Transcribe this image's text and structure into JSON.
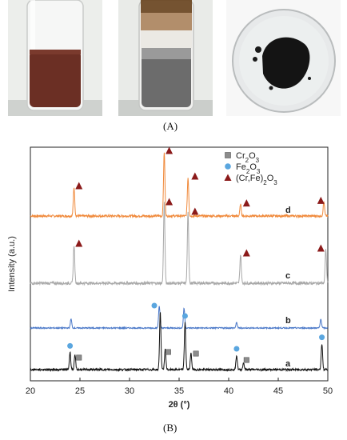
{
  "panel_a_label": "(A)",
  "panel_b_label": "(B)",
  "photos": [
    {
      "name": "red-brown powder in test tube",
      "powder_color": "#6b2f24"
    },
    {
      "name": "gray-brown powder in test tube",
      "powder_color": "#6c6c6c",
      "top_color": "#8a5b2c"
    },
    {
      "name": "black powder on watch glass",
      "powder_color": "#141414"
    }
  ],
  "chart_data": {
    "type": "line",
    "xlabel": "2θ (°)",
    "ylabel": "Intensity (a.u.)",
    "xlim": [
      20,
      50
    ],
    "x_ticks": [
      20,
      25,
      30,
      35,
      40,
      45,
      50
    ],
    "legend_position": "top-right",
    "legend": [
      {
        "label": "Cr2O3",
        "marker": "square",
        "color": "#8c8c8c"
      },
      {
        "label": "Fe2O3",
        "marker": "circle",
        "color": "#5aa6df"
      },
      {
        "label": "(Cr,Fe)2O3",
        "marker": "triangle",
        "color": "#8b1a1a"
      }
    ],
    "series": [
      {
        "name": "d",
        "color": "#f08a3c",
        "peaks": [
          [
            24.4,
            0.45
          ],
          [
            33.5,
            1.0
          ],
          [
            35.9,
            0.6
          ],
          [
            41.2,
            0.18
          ],
          [
            49.6,
            0.22
          ]
        ],
        "markers": [
          {
            "x": 24.9,
            "type": "triangle"
          },
          {
            "x": 34.0,
            "type": "triangle"
          },
          {
            "x": 36.6,
            "type": "triangle"
          },
          {
            "x": 41.8,
            "type": "triangle"
          },
          {
            "x": 49.3,
            "type": "triangle"
          }
        ]
      },
      {
        "name": "c",
        "color": "#a8a8a8",
        "peaks": [
          [
            24.4,
            0.48
          ],
          [
            33.5,
            1.0
          ],
          [
            35.9,
            0.88
          ],
          [
            41.2,
            0.36
          ],
          [
            49.8,
            0.42
          ]
        ],
        "markers": [
          {
            "x": 24.9,
            "type": "triangle"
          },
          {
            "x": 34.0,
            "type": "triangle"
          },
          {
            "x": 36.6,
            "type": "triangle"
          },
          {
            "x": 41.8,
            "type": "triangle"
          },
          {
            "x": 49.3,
            "type": "triangle"
          }
        ]
      },
      {
        "name": "b",
        "color": "#4a78c8",
        "peaks": [
          [
            24.1,
            0.25
          ],
          [
            33.0,
            0.62
          ],
          [
            35.5,
            0.55
          ],
          [
            40.8,
            0.15
          ],
          [
            49.3,
            0.25
          ]
        ],
        "markers": []
      },
      {
        "name": "a",
        "color": "#111111",
        "peaks": [
          [
            24.0,
            0.3
          ],
          [
            24.5,
            0.25
          ],
          [
            33.1,
            1.0
          ],
          [
            33.6,
            0.35
          ],
          [
            35.6,
            0.82
          ],
          [
            36.2,
            0.28
          ],
          [
            40.8,
            0.25
          ],
          [
            41.5,
            0.12
          ],
          [
            49.4,
            0.45
          ]
        ],
        "markers": [
          {
            "x": 24.0,
            "type": "circle"
          },
          {
            "x": 24.9,
            "type": "square"
          },
          {
            "x": 32.5,
            "type": "circle"
          },
          {
            "x": 33.9,
            "type": "square"
          },
          {
            "x": 35.6,
            "type": "circle"
          },
          {
            "x": 36.7,
            "type": "square"
          },
          {
            "x": 40.8,
            "type": "circle"
          },
          {
            "x": 41.8,
            "type": "square"
          },
          {
            "x": 49.4,
            "type": "circle"
          }
        ]
      }
    ]
  }
}
